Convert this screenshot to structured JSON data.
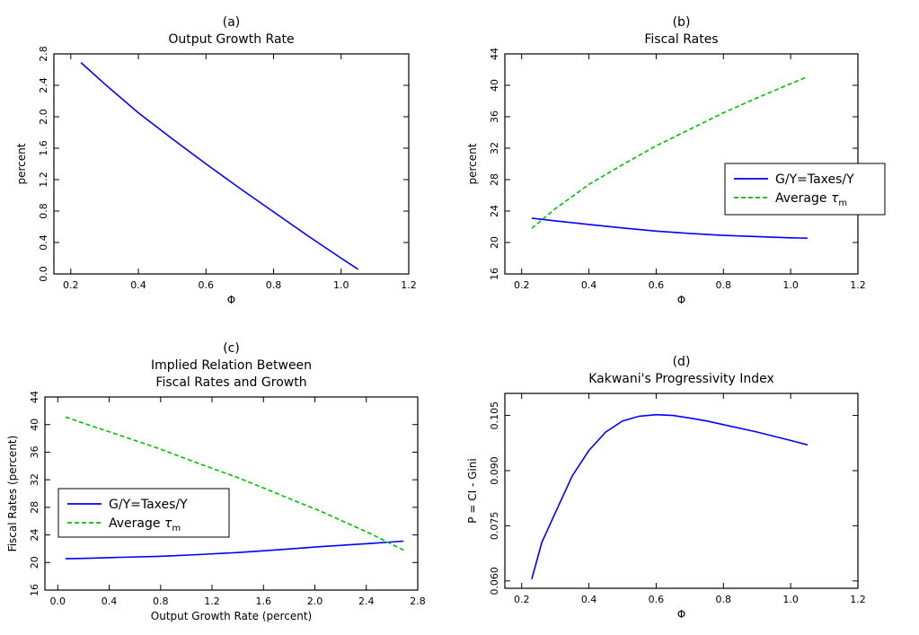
{
  "chart_data": [
    {
      "type": "line",
      "panel_label": "(a)",
      "title": [
        "Output Growth Rate"
      ],
      "xlabel": "Φ",
      "ylabel": "percent",
      "xlim": [
        0.15,
        1.2
      ],
      "ylim": [
        0.0,
        2.8
      ],
      "xticks": [
        "0.2",
        "0.4",
        "0.6",
        "0.8",
        "1.0",
        "1.2"
      ],
      "xtick_values": [
        0.2,
        0.4,
        0.6,
        0.8,
        1.0,
        1.2
      ],
      "yticks": [
        "0.0",
        "0.4",
        "0.8",
        "1.2",
        "1.6",
        "2.0",
        "2.4",
        "2.8"
      ],
      "ytick_values": [
        0.0,
        0.4,
        0.8,
        1.2,
        1.6,
        2.0,
        2.4,
        2.8
      ],
      "rotate_y_ticks": true,
      "grid": false,
      "legend": null,
      "series": [
        {
          "color": "#0000ff",
          "dash": "solid",
          "x": [
            0.23,
            0.3,
            0.4,
            0.5,
            0.6,
            0.7,
            0.8,
            0.9,
            1.0,
            1.05
          ],
          "y": [
            2.69,
            2.42,
            2.05,
            1.72,
            1.4,
            1.09,
            0.79,
            0.49,
            0.2,
            0.06
          ]
        }
      ]
    },
    {
      "type": "line",
      "panel_label": "(b)",
      "title": [
        "Fiscal Rates"
      ],
      "xlabel": "Φ",
      "ylabel": "percent",
      "xlim": [
        0.15,
        1.2
      ],
      "ylim": [
        16,
        44
      ],
      "xticks": [
        "0.2",
        "0.4",
        "0.6",
        "0.8",
        "1.0",
        "1.2"
      ],
      "xtick_values": [
        0.2,
        0.4,
        0.6,
        0.8,
        1.0,
        1.2
      ],
      "yticks": [
        "16",
        "20",
        "24",
        "28",
        "32",
        "36",
        "40",
        "44"
      ],
      "ytick_values": [
        16,
        20,
        24,
        28,
        32,
        36,
        40,
        44
      ],
      "rotate_y_ticks": true,
      "grid": false,
      "legend": "center-right",
      "series": [
        {
          "name": "G/Y=Taxes/Y",
          "color": "#0000ff",
          "dash": "solid",
          "x": [
            0.23,
            0.3,
            0.4,
            0.5,
            0.6,
            0.7,
            0.8,
            0.9,
            1.0,
            1.05
          ],
          "y": [
            23.1,
            22.75,
            22.3,
            21.85,
            21.45,
            21.15,
            20.9,
            20.75,
            20.6,
            20.55
          ]
        },
        {
          "name": "Average ",
          "name_sym": "τ",
          "name_sub": "m",
          "color": "#00c000",
          "dash": "dashed",
          "x": [
            0.23,
            0.3,
            0.4,
            0.5,
            0.6,
            0.7,
            0.8,
            0.9,
            1.0,
            1.05
          ],
          "y": [
            21.8,
            24.3,
            27.4,
            29.9,
            32.3,
            34.4,
            36.5,
            38.4,
            40.2,
            41.1
          ]
        }
      ]
    },
    {
      "type": "line",
      "panel_label": "(c)",
      "title": [
        "Implied Relation Between",
        "Fiscal Rates and Growth"
      ],
      "xlabel": "Output Growth Rate (percent)",
      "ylabel": "Fiscal Rates (percent)",
      "xlim": [
        -0.1,
        2.8
      ],
      "ylim": [
        16,
        44
      ],
      "xticks": [
        "0.0",
        "0.4",
        "0.8",
        "1.2",
        "1.6",
        "2.0",
        "2.4",
        "2.8"
      ],
      "xtick_values": [
        0.0,
        0.4,
        0.8,
        1.2,
        1.6,
        2.0,
        2.4,
        2.8
      ],
      "yticks": [
        "16",
        "20",
        "24",
        "28",
        "32",
        "36",
        "40",
        "44"
      ],
      "ytick_values": [
        16,
        20,
        24,
        28,
        32,
        36,
        40,
        44
      ],
      "rotate_y_ticks": true,
      "grid": false,
      "legend": "center-left",
      "series": [
        {
          "name": "G/Y=Taxes/Y",
          "color": "#0000ff",
          "dash": "solid",
          "x": [
            0.06,
            0.2,
            0.49,
            0.79,
            1.09,
            1.4,
            1.72,
            2.05,
            2.42,
            2.69
          ],
          "y": [
            20.55,
            20.6,
            20.75,
            20.9,
            21.15,
            21.45,
            21.85,
            22.3,
            22.75,
            23.1
          ]
        },
        {
          "name": "Average ",
          "name_sym": "τ",
          "name_sub": "m",
          "color": "#00c000",
          "dash": "dashed",
          "x": [
            0.06,
            0.2,
            0.49,
            0.79,
            1.09,
            1.4,
            1.72,
            2.05,
            2.42,
            2.69
          ],
          "y": [
            41.1,
            40.2,
            38.4,
            36.5,
            34.4,
            32.3,
            29.9,
            27.4,
            24.3,
            21.8
          ]
        }
      ]
    },
    {
      "type": "line",
      "panel_label": "(d)",
      "title": [
        "Kakwani's Progressivity Index"
      ],
      "xlabel": "Φ",
      "ylabel": "P = CI - Gini",
      "xlim": [
        0.15,
        1.2
      ],
      "ylim": [
        0.058,
        0.111
      ],
      "xticks": [
        "0.2",
        "0.4",
        "0.6",
        "0.8",
        "1.0",
        "1.2"
      ],
      "xtick_values": [
        0.2,
        0.4,
        0.6,
        0.8,
        1.0,
        1.2
      ],
      "yticks": [
        "0.060",
        "0.075",
        "0.090",
        "0.105"
      ],
      "ytick_values": [
        0.06,
        0.075,
        0.09,
        0.105
      ],
      "rotate_y_ticks": true,
      "grid": false,
      "legend": null,
      "series": [
        {
          "color": "#0000ff",
          "dash": "solid",
          "x": [
            0.23,
            0.26,
            0.3,
            0.35,
            0.4,
            0.45,
            0.5,
            0.55,
            0.6,
            0.65,
            0.7,
            0.75,
            0.8,
            0.9,
            1.0,
            1.05
          ],
          "y": [
            0.0605,
            0.0705,
            0.0785,
            0.0885,
            0.0955,
            0.1005,
            0.1035,
            0.1048,
            0.1052,
            0.105,
            0.1043,
            0.1035,
            0.1025,
            0.1005,
            0.0982,
            0.097
          ]
        }
      ]
    }
  ]
}
